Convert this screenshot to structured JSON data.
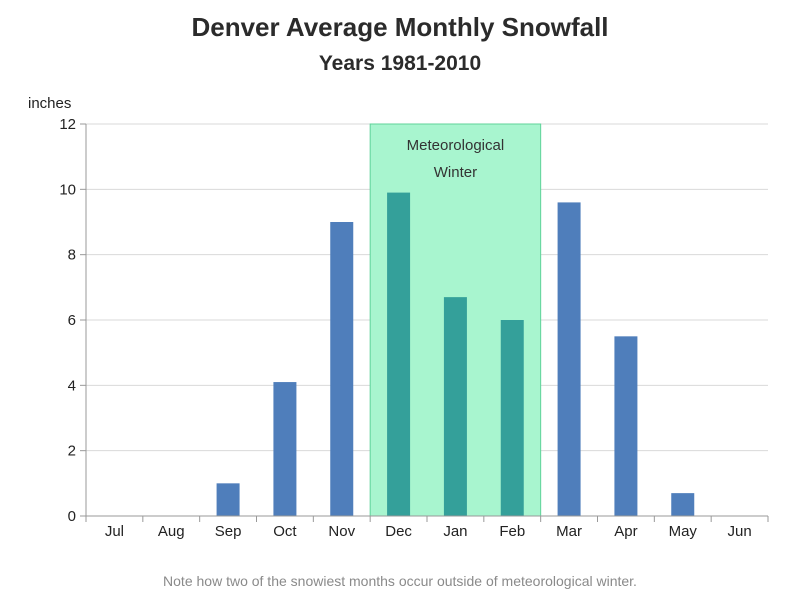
{
  "chart_data": {
    "type": "bar",
    "title": "Denver Average Monthly Snowfall",
    "subtitle": "Years 1981-2010",
    "ylabel": "inches",
    "xlabel": "",
    "categories": [
      "Jul",
      "Aug",
      "Sep",
      "Oct",
      "Nov",
      "Dec",
      "Jan",
      "Feb",
      "Mar",
      "Apr",
      "May",
      "Jun"
    ],
    "values": [
      0,
      0,
      1.0,
      4.1,
      9.0,
      9.9,
      6.7,
      6.0,
      9.6,
      5.5,
      0.7,
      0
    ],
    "ylim": [
      0,
      12
    ],
    "yticks": [
      0,
      2,
      4,
      6,
      8,
      10,
      12
    ],
    "grid": true,
    "highlight_band": {
      "label_line1": "Meteorological",
      "label_line2": "Winter",
      "from_category": "Dec",
      "to_category": "Feb",
      "color": "#a8f5cf",
      "border_color": "#5fd39a"
    },
    "colors": {
      "bar": "#4f7ebb",
      "bar_in_band": "#34a09a",
      "grid": "#d9d9d9",
      "axis": "#999999"
    },
    "note": "Note how two of the snowiest months occur outside of meteorological winter."
  }
}
